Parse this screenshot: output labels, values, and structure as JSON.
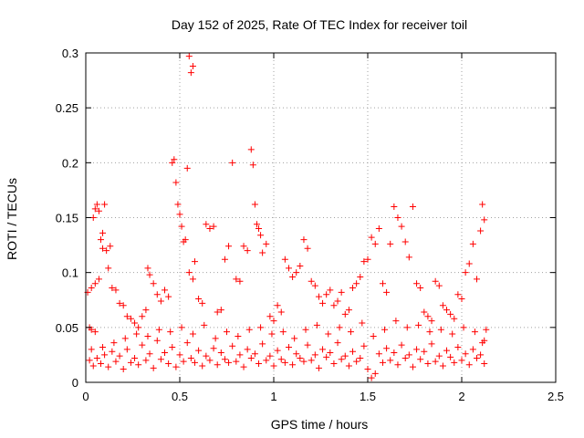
{
  "chart_data": {
    "type": "scatter",
    "title": "Day 152 of 2025, Rate Of TEC Index for receiver toil",
    "xlabel": "GPS time / hours",
    "ylabel": "ROTI / TECUs",
    "xlim": [
      0,
      2.5
    ],
    "ylim": [
      0,
      0.3
    ],
    "xticks": [
      0,
      0.5,
      1,
      1.5,
      2,
      2.5
    ],
    "xtick_labels": [
      "0",
      "0.5",
      "1",
      "1.5",
      "2",
      "2.5"
    ],
    "yticks": [
      0,
      0.05,
      0.1,
      0.15,
      0.2,
      0.25,
      0.3
    ],
    "ytick_labels": [
      "0",
      "0.05",
      "0.1",
      "0.15",
      "0.2",
      "0.25",
      "0.3"
    ],
    "grid": true,
    "marker": "plus",
    "color": "#ff0000",
    "series": [
      {
        "name": "ROTI",
        "points": [
          [
            0.02,
            0.05
          ],
          [
            0.03,
            0.048
          ],
          [
            0.05,
            0.046
          ],
          [
            0.01,
            0.082
          ],
          [
            0.03,
            0.086
          ],
          [
            0.05,
            0.09
          ],
          [
            0.07,
            0.094
          ],
          [
            0.04,
            0.15
          ],
          [
            0.05,
            0.158
          ],
          [
            0.06,
            0.162
          ],
          [
            0.07,
            0.156
          ],
          [
            0.08,
            0.13
          ],
          [
            0.09,
            0.136
          ],
          [
            0.1,
            0.162
          ],
          [
            0.09,
            0.122
          ],
          [
            0.11,
            0.12
          ],
          [
            0.12,
            0.104
          ],
          [
            0.13,
            0.124
          ],
          [
            0.14,
            0.086
          ],
          [
            0.16,
            0.084
          ],
          [
            0.18,
            0.072
          ],
          [
            0.2,
            0.07
          ],
          [
            0.22,
            0.06
          ],
          [
            0.24,
            0.058
          ],
          [
            0.26,
            0.054
          ],
          [
            0.28,
            0.05
          ],
          [
            0.3,
            0.06
          ],
          [
            0.32,
            0.066
          ],
          [
            0.33,
            0.104
          ],
          [
            0.34,
            0.098
          ],
          [
            0.36,
            0.09
          ],
          [
            0.38,
            0.08
          ],
          [
            0.4,
            0.074
          ],
          [
            0.42,
            0.084
          ],
          [
            0.44,
            0.078
          ],
          [
            0.46,
            0.2
          ],
          [
            0.47,
            0.203
          ],
          [
            0.48,
            0.182
          ],
          [
            0.49,
            0.162
          ],
          [
            0.5,
            0.153
          ],
          [
            0.51,
            0.142
          ],
          [
            0.52,
            0.128
          ],
          [
            0.53,
            0.13
          ],
          [
            0.54,
            0.195
          ],
          [
            0.55,
            0.297
          ],
          [
            0.56,
            0.282
          ],
          [
            0.57,
            0.288
          ],
          [
            0.55,
            0.1
          ],
          [
            0.57,
            0.094
          ],
          [
            0.58,
            0.11
          ],
          [
            0.6,
            0.076
          ],
          [
            0.62,
            0.072
          ],
          [
            0.64,
            0.144
          ],
          [
            0.66,
            0.14
          ],
          [
            0.68,
            0.142
          ],
          [
            0.7,
            0.064
          ],
          [
            0.72,
            0.066
          ],
          [
            0.74,
            0.112
          ],
          [
            0.76,
            0.124
          ],
          [
            0.78,
            0.2
          ],
          [
            0.8,
            0.094
          ],
          [
            0.82,
            0.092
          ],
          [
            0.84,
            0.124
          ],
          [
            0.86,
            0.12
          ],
          [
            0.88,
            0.212
          ],
          [
            0.89,
            0.198
          ],
          [
            0.9,
            0.162
          ],
          [
            0.91,
            0.144
          ],
          [
            0.92,
            0.14
          ],
          [
            0.93,
            0.134
          ],
          [
            0.94,
            0.118
          ],
          [
            0.96,
            0.126
          ],
          [
            0.98,
            0.06
          ],
          [
            1.0,
            0.056
          ],
          [
            1.02,
            0.07
          ],
          [
            1.04,
            0.064
          ],
          [
            1.06,
            0.112
          ],
          [
            1.08,
            0.104
          ],
          [
            1.1,
            0.096
          ],
          [
            1.12,
            0.1
          ],
          [
            1.14,
            0.106
          ],
          [
            1.16,
            0.13
          ],
          [
            1.18,
            0.122
          ],
          [
            1.2,
            0.092
          ],
          [
            1.22,
            0.088
          ],
          [
            1.24,
            0.078
          ],
          [
            1.26,
            0.072
          ],
          [
            1.28,
            0.08
          ],
          [
            1.3,
            0.084
          ],
          [
            1.32,
            0.07
          ],
          [
            1.34,
            0.074
          ],
          [
            1.36,
            0.082
          ],
          [
            1.38,
            0.062
          ],
          [
            1.4,
            0.066
          ],
          [
            1.42,
            0.086
          ],
          [
            1.44,
            0.09
          ],
          [
            1.46,
            0.096
          ],
          [
            1.48,
            0.11
          ],
          [
            1.5,
            0.112
          ],
          [
            1.52,
            0.132
          ],
          [
            1.54,
            0.126
          ],
          [
            1.56,
            0.14
          ],
          [
            1.58,
            0.09
          ],
          [
            1.6,
            0.082
          ],
          [
            1.62,
            0.126
          ],
          [
            1.64,
            0.16
          ],
          [
            1.66,
            0.15
          ],
          [
            1.68,
            0.142
          ],
          [
            1.7,
            0.128
          ],
          [
            1.72,
            0.114
          ],
          [
            1.74,
            0.16
          ],
          [
            1.76,
            0.09
          ],
          [
            1.78,
            0.086
          ],
          [
            1.8,
            0.064
          ],
          [
            1.82,
            0.06
          ],
          [
            1.84,
            0.056
          ],
          [
            1.86,
            0.092
          ],
          [
            1.88,
            0.088
          ],
          [
            1.9,
            0.07
          ],
          [
            1.92,
            0.066
          ],
          [
            1.94,
            0.062
          ],
          [
            1.96,
            0.058
          ],
          [
            1.98,
            0.08
          ],
          [
            2.0,
            0.076
          ],
          [
            2.02,
            0.1
          ],
          [
            2.04,
            0.108
          ],
          [
            2.06,
            0.126
          ],
          [
            2.08,
            0.094
          ],
          [
            2.1,
            0.138
          ],
          [
            2.11,
            0.162
          ],
          [
            2.12,
            0.148
          ],
          [
            2.12,
            0.038
          ],
          [
            2.11,
            0.036
          ],
          [
            0.02,
            0.02
          ],
          [
            0.04,
            0.015
          ],
          [
            0.06,
            0.022
          ],
          [
            0.08,
            0.017
          ],
          [
            0.1,
            0.025
          ],
          [
            0.12,
            0.014
          ],
          [
            0.14,
            0.028
          ],
          [
            0.16,
            0.019
          ],
          [
            0.18,
            0.024
          ],
          [
            0.2,
            0.012
          ],
          [
            0.22,
            0.03
          ],
          [
            0.24,
            0.018
          ],
          [
            0.26,
            0.022
          ],
          [
            0.28,
            0.016
          ],
          [
            0.3,
            0.034
          ],
          [
            0.32,
            0.02
          ],
          [
            0.34,
            0.026
          ],
          [
            0.36,
            0.013
          ],
          [
            0.38,
            0.038
          ],
          [
            0.4,
            0.021
          ],
          [
            0.42,
            0.027
          ],
          [
            0.44,
            0.017
          ],
          [
            0.46,
            0.032
          ],
          [
            0.48,
            0.014
          ],
          [
            0.5,
            0.025
          ],
          [
            0.52,
            0.019
          ],
          [
            0.54,
            0.036
          ],
          [
            0.56,
            0.022
          ],
          [
            0.58,
            0.018
          ],
          [
            0.6,
            0.029
          ],
          [
            0.62,
            0.015
          ],
          [
            0.64,
            0.024
          ],
          [
            0.66,
            0.02
          ],
          [
            0.68,
            0.031
          ],
          [
            0.7,
            0.016
          ],
          [
            0.72,
            0.027
          ],
          [
            0.74,
            0.021
          ],
          [
            0.76,
            0.018
          ],
          [
            0.78,
            0.033
          ],
          [
            0.8,
            0.019
          ],
          [
            0.82,
            0.025
          ],
          [
            0.84,
            0.014
          ],
          [
            0.86,
            0.03
          ],
          [
            0.88,
            0.022
          ],
          [
            0.9,
            0.026
          ],
          [
            0.92,
            0.017
          ],
          [
            0.94,
            0.035
          ],
          [
            0.96,
            0.02
          ],
          [
            0.98,
            0.024
          ],
          [
            1.0,
            0.015
          ],
          [
            1.02,
            0.029
          ],
          [
            1.04,
            0.021
          ],
          [
            1.06,
            0.018
          ],
          [
            1.08,
            0.032
          ],
          [
            1.1,
            0.016
          ],
          [
            1.12,
            0.026
          ],
          [
            1.14,
            0.022
          ],
          [
            1.16,
            0.019
          ],
          [
            1.18,
            0.034
          ],
          [
            1.2,
            0.02
          ],
          [
            1.22,
            0.025
          ],
          [
            1.24,
            0.013
          ],
          [
            1.26,
            0.03
          ],
          [
            1.28,
            0.023
          ],
          [
            1.3,
            0.027
          ],
          [
            1.32,
            0.017
          ],
          [
            1.34,
            0.036
          ],
          [
            1.36,
            0.021
          ],
          [
            1.38,
            0.024
          ],
          [
            1.4,
            0.015
          ],
          [
            1.42,
            0.028
          ],
          [
            1.44,
            0.019
          ],
          [
            1.46,
            0.022
          ],
          [
            1.48,
            0.033
          ],
          [
            1.5,
            0.012
          ],
          [
            1.52,
            0.004
          ],
          [
            1.54,
            0.008
          ],
          [
            1.56,
            0.026
          ],
          [
            1.58,
            0.018
          ],
          [
            1.6,
            0.031
          ],
          [
            1.62,
            0.02
          ],
          [
            1.64,
            0.027
          ],
          [
            1.66,
            0.016
          ],
          [
            1.68,
            0.034
          ],
          [
            1.7,
            0.022
          ],
          [
            1.72,
            0.025
          ],
          [
            1.74,
            0.014
          ],
          [
            1.76,
            0.03
          ],
          [
            1.78,
            0.021
          ],
          [
            1.8,
            0.028
          ],
          [
            1.82,
            0.017
          ],
          [
            1.84,
            0.035
          ],
          [
            1.86,
            0.019
          ],
          [
            1.88,
            0.024
          ],
          [
            1.9,
            0.015
          ],
          [
            1.92,
            0.029
          ],
          [
            1.94,
            0.023
          ],
          [
            1.96,
            0.018
          ],
          [
            1.98,
            0.032
          ],
          [
            2.0,
            0.02
          ],
          [
            2.02,
            0.026
          ],
          [
            2.04,
            0.016
          ],
          [
            2.06,
            0.03
          ],
          [
            2.08,
            0.022
          ],
          [
            2.1,
            0.025
          ],
          [
            2.12,
            0.017
          ],
          [
            0.03,
            0.03
          ],
          [
            0.09,
            0.032
          ],
          [
            0.15,
            0.036
          ],
          [
            0.21,
            0.04
          ],
          [
            0.27,
            0.044
          ],
          [
            0.33,
            0.042
          ],
          [
            0.39,
            0.048
          ],
          [
            0.45,
            0.046
          ],
          [
            0.51,
            0.05
          ],
          [
            0.57,
            0.044
          ],
          [
            0.63,
            0.052
          ],
          [
            0.69,
            0.04
          ],
          [
            0.75,
            0.046
          ],
          [
            0.81,
            0.042
          ],
          [
            0.87,
            0.048
          ],
          [
            0.93,
            0.05
          ],
          [
            0.99,
            0.044
          ],
          [
            1.05,
            0.046
          ],
          [
            1.11,
            0.04
          ],
          [
            1.17,
            0.048
          ],
          [
            1.23,
            0.052
          ],
          [
            1.29,
            0.044
          ],
          [
            1.35,
            0.05
          ],
          [
            1.41,
            0.046
          ],
          [
            1.47,
            0.054
          ],
          [
            1.53,
            0.042
          ],
          [
            1.59,
            0.048
          ],
          [
            1.65,
            0.056
          ],
          [
            1.71,
            0.05
          ],
          [
            1.77,
            0.052
          ],
          [
            1.83,
            0.046
          ],
          [
            1.89,
            0.048
          ],
          [
            1.95,
            0.044
          ],
          [
            2.01,
            0.05
          ],
          [
            2.07,
            0.046
          ],
          [
            2.13,
            0.048
          ]
        ]
      }
    ]
  }
}
